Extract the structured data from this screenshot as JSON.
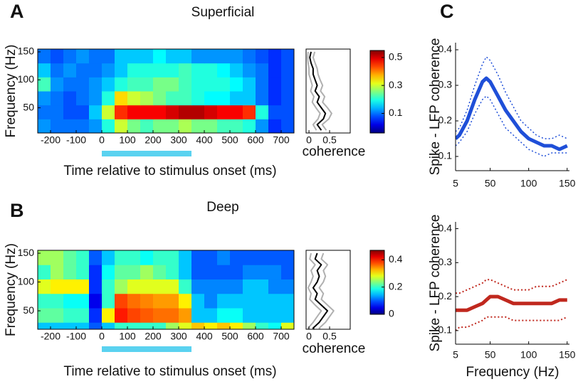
{
  "panel_labels": [
    "A",
    "B",
    "C"
  ],
  "chart_data": [
    {
      "type": "heatmap",
      "title": "Superficial",
      "xlabel": "Time relative to stimulus onset (ms)",
      "ylabel": "Frequency (Hz)",
      "x": [
        -225,
        -175,
        -125,
        -75,
        -25,
        25,
        75,
        125,
        175,
        225,
        275,
        325,
        375,
        425,
        475,
        525,
        575,
        625,
        675,
        725
      ],
      "y": [
        17.5,
        42.5,
        67.5,
        92.5,
        117.5,
        142.5
      ],
      "z": [
        [
          0.12,
          0.1,
          0.1,
          0.1,
          0.12,
          0.2,
          0.3,
          0.25,
          0.22,
          0.25,
          0.25,
          0.28,
          0.25,
          0.25,
          0.22,
          0.22,
          0.2,
          0.12,
          0.06,
          0.08
        ],
        [
          0.1,
          0.1,
          0.08,
          0.08,
          0.15,
          0.3,
          0.45,
          0.48,
          0.48,
          0.48,
          0.5,
          0.52,
          0.52,
          0.5,
          0.48,
          0.48,
          0.45,
          0.2,
          0.08,
          0.08
        ],
        [
          0.12,
          0.1,
          0.08,
          0.1,
          0.12,
          0.2,
          0.35,
          0.3,
          0.28,
          0.25,
          0.22,
          0.22,
          0.2,
          0.18,
          0.18,
          0.15,
          0.15,
          0.1,
          0.06,
          0.08
        ],
        [
          0.22,
          0.12,
          0.1,
          0.1,
          0.12,
          0.15,
          0.2,
          0.22,
          0.22,
          0.25,
          0.25,
          0.22,
          0.2,
          0.2,
          0.2,
          0.18,
          0.15,
          0.1,
          0.06,
          0.08
        ],
        [
          0.15,
          0.1,
          0.12,
          0.1,
          0.1,
          0.12,
          0.15,
          0.2,
          0.2,
          0.2,
          0.2,
          0.22,
          0.2,
          0.2,
          0.18,
          0.15,
          0.12,
          0.1,
          0.06,
          0.08
        ],
        [
          0.1,
          0.08,
          0.1,
          0.12,
          0.1,
          0.1,
          0.15,
          0.15,
          0.15,
          0.18,
          0.15,
          0.15,
          0.12,
          0.12,
          0.12,
          0.12,
          0.1,
          0.08,
          0.06,
          0.08
        ]
      ],
      "xlim": [
        -250,
        750
      ],
      "ylim": [
        5,
        155
      ],
      "xticks": [
        -200,
        -100,
        0,
        100,
        200,
        300,
        400,
        500,
        600,
        700
      ],
      "yticks": [
        50,
        100,
        150
      ],
      "zlim": [
        -0.04,
        0.55
      ],
      "zticks": [
        0.1,
        0.3,
        0.5
      ],
      "stimulus": [
        0,
        350
      ],
      "stimulus_color": "#5ad2f0"
    },
    {
      "type": "profile",
      "xlabel": "coherence",
      "y": [
        10,
        20,
        30,
        40,
        50,
        60,
        70,
        80,
        90,
        100,
        110,
        120,
        130,
        140,
        150
      ],
      "series": [
        {
          "color": "#b0b0b0",
          "values": [
            0.42,
            0.32,
            0.48,
            0.55,
            0.45,
            0.33,
            0.38,
            0.28,
            0.33,
            0.27,
            0.22,
            0.2,
            0.15,
            0.1,
            0.14
          ]
        },
        {
          "color": "#b0b0b0",
          "values": [
            0.18,
            0.1,
            0.22,
            0.27,
            0.17,
            0.08,
            0.12,
            0.04,
            0.08,
            0.04,
            0.0,
            0.0,
            -0.02,
            -0.03,
            -0.02
          ]
        },
        {
          "color": "#000000",
          "values": [
            0.3,
            0.2,
            0.35,
            0.4,
            0.3,
            0.2,
            0.25,
            0.15,
            0.2,
            0.15,
            0.1,
            0.1,
            0.05,
            0.02,
            0.05
          ]
        }
      ],
      "xlim": [
        -0.07,
        1.0
      ],
      "ylim": [
        5,
        155
      ],
      "xticks": [
        0,
        0.5
      ]
    },
    {
      "type": "heatmap",
      "title": "Deep",
      "xlabel": "Time relative to stimulus onset (ms)",
      "ylabel": "Frequency (Hz)",
      "x": [
        -225,
        -175,
        -125,
        -75,
        -25,
        25,
        75,
        125,
        175,
        225,
        275,
        325,
        375,
        425,
        475,
        525,
        575,
        625,
        675,
        725
      ],
      "y": [
        17.5,
        42.5,
        67.5,
        92.5,
        117.5,
        142.5
      ],
      "z": [
        [
          0.15,
          0.15,
          0.15,
          0.15,
          0.1,
          0.15,
          0.2,
          0.2,
          0.2,
          0.2,
          0.25,
          0.28,
          0.32,
          0.3,
          0.32,
          0.3,
          0.25,
          0.2,
          0.18,
          0.28
        ],
        [
          0.22,
          0.22,
          0.2,
          0.2,
          0.08,
          0.3,
          0.4,
          0.38,
          0.37,
          0.36,
          0.36,
          0.34,
          0.15,
          0.15,
          0.18,
          0.18,
          0.15,
          0.15,
          0.15,
          0.15
        ],
        [
          0.2,
          0.2,
          0.18,
          0.18,
          0.05,
          0.2,
          0.38,
          0.36,
          0.35,
          0.34,
          0.34,
          0.3,
          0.15,
          0.12,
          0.15,
          0.15,
          0.15,
          0.15,
          0.15,
          0.15
        ],
        [
          0.28,
          0.3,
          0.3,
          0.3,
          0.08,
          0.2,
          0.25,
          0.28,
          0.28,
          0.28,
          0.28,
          0.2,
          0.12,
          0.12,
          0.12,
          0.12,
          0.15,
          0.15,
          0.12,
          0.12
        ],
        [
          0.2,
          0.25,
          0.22,
          0.2,
          0.08,
          0.18,
          0.22,
          0.22,
          0.25,
          0.22,
          0.2,
          0.15,
          0.1,
          0.1,
          0.1,
          0.1,
          0.12,
          0.12,
          0.12,
          0.1
        ],
        [
          0.25,
          0.25,
          0.22,
          0.2,
          0.1,
          0.15,
          0.2,
          0.2,
          0.18,
          0.2,
          0.2,
          0.15,
          0.1,
          0.1,
          0.12,
          0.1,
          0.1,
          0.1,
          0.1,
          0.1
        ]
      ],
      "xlim": [
        -250,
        750
      ],
      "ylim": [
        18,
        155
      ],
      "xticks": [
        -200,
        -100,
        0,
        100,
        200,
        300,
        400,
        500,
        600,
        700
      ],
      "yticks": [
        50,
        100,
        150
      ],
      "zlim": [
        0,
        0.47
      ],
      "zticks": [
        0,
        0.2,
        0.4
      ],
      "stimulus": [
        0,
        350
      ],
      "stimulus_color": "#5ad2f0"
    },
    {
      "type": "profile",
      "xlabel": "coherence",
      "y": [
        10,
        20,
        30,
        40,
        50,
        60,
        70,
        80,
        90,
        100,
        110,
        120,
        130,
        140,
        150
      ],
      "series": [
        {
          "color": "#b0b0b0",
          "values": [
            0.35,
            0.25,
            0.4,
            0.5,
            0.6,
            0.45,
            0.3,
            0.35,
            0.25,
            0.35,
            0.4,
            0.35,
            0.45,
            0.3,
            0.35
          ]
        },
        {
          "color": "#b0b0b0",
          "values": [
            0.05,
            -0.02,
            0.1,
            0.2,
            0.3,
            0.15,
            0.02,
            0.05,
            -0.02,
            0.05,
            0.1,
            0.05,
            0.15,
            0.02,
            0.05
          ]
        },
        {
          "color": "#000000",
          "values": [
            0.2,
            0.1,
            0.25,
            0.35,
            0.45,
            0.3,
            0.15,
            0.2,
            0.1,
            0.2,
            0.25,
            0.2,
            0.3,
            0.15,
            0.2
          ]
        }
      ],
      "xlim": [
        -0.07,
        1.0
      ],
      "ylim": [
        18,
        155
      ],
      "xticks": [
        0,
        0.5
      ]
    },
    {
      "type": "line",
      "ylabel": "Spike - LFP coherence",
      "x": [
        5,
        10,
        20,
        30,
        40,
        45,
        50,
        60,
        70,
        80,
        90,
        100,
        110,
        120,
        130,
        140,
        150
      ],
      "series": [
        {
          "color": "#1f4fd8",
          "linestyle": "dotted",
          "linewidth": 1.5,
          "values": [
            0.17,
            0.18,
            0.23,
            0.3,
            0.36,
            0.38,
            0.37,
            0.33,
            0.28,
            0.24,
            0.2,
            0.18,
            0.16,
            0.15,
            0.15,
            0.16,
            0.15
          ]
        },
        {
          "color": "#1f4fd8",
          "linestyle": "dotted",
          "linewidth": 1.5,
          "values": [
            0.13,
            0.14,
            0.17,
            0.22,
            0.26,
            0.27,
            0.26,
            0.22,
            0.18,
            0.16,
            0.14,
            0.12,
            0.11,
            0.1,
            0.11,
            0.11,
            0.11
          ]
        },
        {
          "color": "#1f4fd8",
          "linestyle": "solid",
          "linewidth": 5,
          "values": [
            0.15,
            0.16,
            0.2,
            0.26,
            0.31,
            0.32,
            0.31,
            0.27,
            0.23,
            0.2,
            0.17,
            0.15,
            0.14,
            0.13,
            0.13,
            0.12,
            0.13
          ]
        }
      ],
      "xlim": [
        5,
        153
      ],
      "ylim": [
        0.06,
        0.42
      ],
      "xticks": [
        5,
        50,
        100,
        150
      ],
      "yticks": [
        0.1,
        0.2,
        0.3,
        0.4
      ]
    },
    {
      "type": "line",
      "ylabel": "Spike - LFP coherence",
      "xlabel": "Frequency (Hz)",
      "x": [
        5,
        10,
        20,
        30,
        40,
        45,
        50,
        60,
        70,
        80,
        90,
        100,
        110,
        120,
        130,
        140,
        150
      ],
      "series": [
        {
          "color": "#c0281e",
          "linestyle": "dotted",
          "linewidth": 2,
          "values": [
            0.21,
            0.21,
            0.22,
            0.23,
            0.24,
            0.25,
            0.25,
            0.24,
            0.23,
            0.22,
            0.22,
            0.22,
            0.23,
            0.23,
            0.23,
            0.24,
            0.25
          ]
        },
        {
          "color": "#c0281e",
          "linestyle": "dotted",
          "linewidth": 2,
          "values": [
            0.1,
            0.11,
            0.11,
            0.12,
            0.13,
            0.14,
            0.14,
            0.14,
            0.14,
            0.13,
            0.13,
            0.13,
            0.13,
            0.13,
            0.13,
            0.13,
            0.14
          ]
        },
        {
          "color": "#c0281e",
          "linestyle": "solid",
          "linewidth": 5,
          "values": [
            0.16,
            0.16,
            0.16,
            0.17,
            0.18,
            0.19,
            0.2,
            0.2,
            0.19,
            0.18,
            0.18,
            0.18,
            0.18,
            0.18,
            0.18,
            0.19,
            0.19
          ]
        }
      ],
      "xlim": [
        5,
        153
      ],
      "ylim": [
        0.06,
        0.42
      ],
      "xticks": [
        5,
        50,
        100,
        150
      ],
      "yticks": [
        0.1,
        0.2,
        0.3,
        0.4
      ]
    }
  ]
}
